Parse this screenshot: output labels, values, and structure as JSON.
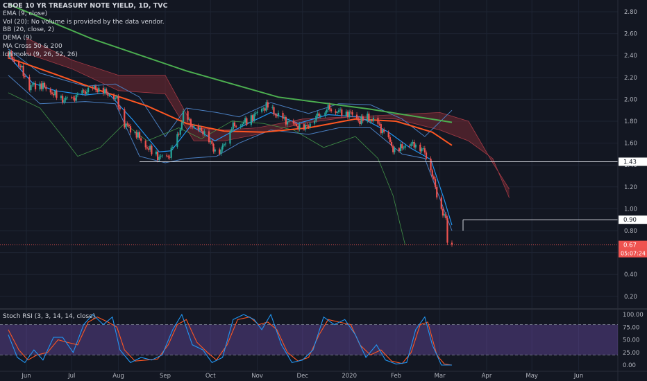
{
  "header": {
    "title": "CBOE 10 YR TREASURY NOTE YIELD, 1D, TVC",
    "indicators": [
      "EMA (9, close)",
      "Vol (20): No volume is provided by the data vendor.",
      "BB (20, close, 2)",
      "DEMA (9)",
      "MA Cross 50 & 200",
      "Ichimoku (9, 26, 52, 26)"
    ]
  },
  "rsi": {
    "label": "Stoch RSI (3, 3, 14, 14, close)"
  },
  "colors": {
    "background": "#131722",
    "up": "#26a69a",
    "down": "#ef5350",
    "ema": "#2196f3",
    "ma50": "#ff5722",
    "ma200": "#4caf50",
    "bb": "#4a7fc1",
    "cloud": "#8b2e38",
    "lagging": "#4caf50",
    "k": "#2196f3",
    "d": "#ff5722",
    "rsiBand": "#7e57c2"
  },
  "chart_data": [
    {
      "type": "candlestick",
      "y_axis": {
        "ticks": [
          "2.80",
          "2.60",
          "2.40",
          "2.20",
          "2.00",
          "1.80",
          "1.60",
          "1.40",
          "1.20",
          "1.00",
          "0.80",
          "0.60",
          "0.40",
          "0.20"
        ],
        "range": [
          0.12,
          2.88
        ]
      },
      "x_axis": {
        "ticks": [
          "Jun",
          "Jul",
          "Aug",
          "Sep",
          "Oct",
          "Nov",
          "Dec",
          "2020",
          "Feb",
          "Mar",
          "Apr",
          "May",
          "Jun"
        ]
      },
      "price_labels": [
        {
          "value": 1.43,
          "text": "1.43"
        },
        {
          "value": 0.9,
          "text": "0.90"
        },
        {
          "value": 0.67,
          "text": "0.67",
          "subtext": "05:07:24"
        }
      ],
      "anchors": [
        [
          "2019-05-20",
          2.42
        ],
        [
          "2019-05-28",
          2.3
        ],
        [
          "2019-06-03",
          2.12
        ],
        [
          "2019-06-10",
          2.14
        ],
        [
          "2019-06-18",
          2.06
        ],
        [
          "2019-06-24",
          2.0
        ],
        [
          "2019-07-01",
          2.0
        ],
        [
          "2019-07-08",
          2.06
        ],
        [
          "2019-07-16",
          2.1
        ],
        [
          "2019-07-24",
          2.06
        ],
        [
          "2019-07-31",
          2.0
        ],
        [
          "2019-08-05",
          1.78
        ],
        [
          "2019-08-12",
          1.7
        ],
        [
          "2019-08-20",
          1.56
        ],
        [
          "2019-08-28",
          1.47
        ],
        [
          "2019-09-03",
          1.47
        ],
        [
          "2019-09-10",
          1.68
        ],
        [
          "2019-09-13",
          1.86
        ],
        [
          "2019-09-20",
          1.74
        ],
        [
          "2019-09-27",
          1.7
        ],
        [
          "2019-10-03",
          1.55
        ],
        [
          "2019-10-08",
          1.53
        ],
        [
          "2019-10-15",
          1.75
        ],
        [
          "2019-10-25",
          1.8
        ],
        [
          "2019-11-07",
          1.94
        ],
        [
          "2019-11-15",
          1.84
        ],
        [
          "2019-11-26",
          1.76
        ],
        [
          "2019-12-03",
          1.74
        ],
        [
          "2019-12-10",
          1.84
        ],
        [
          "2019-12-18",
          1.92
        ],
        [
          "2019-12-27",
          1.88
        ],
        [
          "2020-01-02",
          1.87
        ],
        [
          "2020-01-08",
          1.8
        ],
        [
          "2020-01-13",
          1.83
        ],
        [
          "2020-01-20",
          1.77
        ],
        [
          "2020-01-27",
          1.63
        ],
        [
          "2020-01-31",
          1.52
        ],
        [
          "2020-02-07",
          1.58
        ],
        [
          "2020-02-14",
          1.59
        ],
        [
          "2020-02-20",
          1.52
        ],
        [
          "2020-02-24",
          1.37
        ],
        [
          "2020-02-28",
          1.13
        ],
        [
          "2020-03-02",
          1.0
        ],
        [
          "2020-03-05",
          0.9
        ],
        [
          "2020-03-06",
          0.7
        ],
        [
          "2020-03-09",
          0.67
        ]
      ],
      "ema9": [
        [
          "2019-05-20",
          2.4
        ],
        [
          "2019-06-05",
          2.15
        ],
        [
          "2019-06-20",
          2.08
        ],
        [
          "2019-07-10",
          2.04
        ],
        [
          "2019-07-25",
          2.06
        ],
        [
          "2019-08-10",
          1.82
        ],
        [
          "2019-08-28",
          1.52
        ],
        [
          "2019-09-05",
          1.53
        ],
        [
          "2019-09-18",
          1.76
        ],
        [
          "2019-10-04",
          1.62
        ],
        [
          "2019-10-20",
          1.74
        ],
        [
          "2019-11-10",
          1.88
        ],
        [
          "2019-11-28",
          1.78
        ],
        [
          "2019-12-18",
          1.86
        ],
        [
          "2020-01-08",
          1.84
        ],
        [
          "2020-01-27",
          1.7
        ],
        [
          "2020-02-10",
          1.56
        ],
        [
          "2020-02-24",
          1.45
        ],
        [
          "2020-03-04",
          1.08
        ],
        [
          "2020-03-09",
          0.85
        ]
      ],
      "ma50": [
        [
          "2019-05-20",
          2.38
        ],
        [
          "2019-06-20",
          2.23
        ],
        [
          "2019-07-20",
          2.08
        ],
        [
          "2019-08-20",
          1.94
        ],
        [
          "2019-09-15",
          1.78
        ],
        [
          "2019-10-10",
          1.71
        ],
        [
          "2019-11-05",
          1.7
        ],
        [
          "2019-12-05",
          1.74
        ],
        [
          "2020-01-05",
          1.82
        ],
        [
          "2020-02-01",
          1.8
        ],
        [
          "2020-02-25",
          1.7
        ],
        [
          "2020-03-09",
          1.58
        ]
      ],
      "ma200": [
        [
          "2019-05-20",
          2.87
        ],
        [
          "2019-07-15",
          2.55
        ],
        [
          "2019-09-15",
          2.26
        ],
        [
          "2019-11-15",
          2.02
        ],
        [
          "2020-01-15",
          1.91
        ],
        [
          "2020-02-20",
          1.83
        ],
        [
          "2020-03-09",
          1.79
        ]
      ],
      "bb_upper": [
        [
          "2019-05-20",
          2.46
        ],
        [
          "2019-06-10",
          2.24
        ],
        [
          "2019-07-10",
          2.12
        ],
        [
          "2019-07-30",
          2.14
        ],
        [
          "2019-08-15",
          2.02
        ],
        [
          "2019-09-01",
          1.66
        ],
        [
          "2019-09-15",
          1.92
        ],
        [
          "2019-10-05",
          1.88
        ],
        [
          "2019-10-20",
          1.84
        ],
        [
          "2019-11-10",
          1.97
        ],
        [
          "2019-12-05",
          1.87
        ],
        [
          "2019-12-25",
          1.96
        ],
        [
          "2020-01-15",
          1.95
        ],
        [
          "2020-02-05",
          1.82
        ],
        [
          "2020-02-20",
          1.66
        ],
        [
          "2020-03-09",
          1.9
        ]
      ],
      "bb_lower": [
        [
          "2019-05-20",
          2.22
        ],
        [
          "2019-06-10",
          1.96
        ],
        [
          "2019-07-10",
          1.98
        ],
        [
          "2019-07-30",
          1.96
        ],
        [
          "2019-08-15",
          1.48
        ],
        [
          "2019-09-01",
          1.42
        ],
        [
          "2019-09-15",
          1.46
        ],
        [
          "2019-10-05",
          1.48
        ],
        [
          "2019-10-20",
          1.6
        ],
        [
          "2019-11-10",
          1.72
        ],
        [
          "2019-12-05",
          1.68
        ],
        [
          "2019-12-25",
          1.74
        ],
        [
          "2020-01-15",
          1.74
        ],
        [
          "2020-02-05",
          1.5
        ],
        [
          "2020-02-20",
          1.46
        ],
        [
          "2020-03-09",
          0.8
        ]
      ],
      "cloud_a": [
        [
          "2019-06-01",
          2.42
        ],
        [
          "2019-07-01",
          2.28
        ],
        [
          "2019-08-01",
          2.08
        ],
        [
          "2019-09-01",
          2.05
        ],
        [
          "2019-09-20",
          1.62
        ],
        [
          "2019-10-10",
          1.62
        ],
        [
          "2019-11-01",
          1.68
        ],
        [
          "2019-12-01",
          1.78
        ],
        [
          "2020-01-01",
          1.84
        ],
        [
          "2020-02-01",
          1.82
        ],
        [
          "2020-03-01",
          1.72
        ],
        [
          "2020-03-20",
          1.62
        ],
        [
          "2020-04-05",
          1.46
        ],
        [
          "2020-04-16",
          1.1
        ]
      ],
      "cloud_b": [
        [
          "2019-06-01",
          2.56
        ],
        [
          "2019-07-01",
          2.36
        ],
        [
          "2019-08-01",
          2.22
        ],
        [
          "2019-09-01",
          2.22
        ],
        [
          "2019-09-20",
          1.74
        ],
        [
          "2019-10-10",
          1.72
        ],
        [
          "2019-11-01",
          1.74
        ],
        [
          "2019-12-01",
          1.82
        ],
        [
          "2020-01-01",
          1.84
        ],
        [
          "2020-02-01",
          1.86
        ],
        [
          "2020-03-01",
          1.88
        ],
        [
          "2020-03-20",
          1.8
        ],
        [
          "2020-04-05",
          1.42
        ],
        [
          "2020-04-16",
          1.18
        ]
      ],
      "lagging": [
        [
          "2019-05-20",
          2.06
        ],
        [
          "2019-06-10",
          1.92
        ],
        [
          "2019-06-25",
          1.66
        ],
        [
          "2019-07-05",
          1.48
        ],
        [
          "2019-07-20",
          1.56
        ],
        [
          "2019-08-05",
          1.78
        ],
        [
          "2019-08-20",
          1.62
        ],
        [
          "2019-09-10",
          1.74
        ],
        [
          "2019-09-25",
          1.64
        ],
        [
          "2019-10-15",
          1.8
        ],
        [
          "2019-11-05",
          1.78
        ],
        [
          "2019-11-25",
          1.72
        ],
        [
          "2019-12-15",
          1.56
        ],
        [
          "2020-01-05",
          1.66
        ],
        [
          "2020-01-20",
          1.46
        ],
        [
          "2020-01-30",
          1.12
        ],
        [
          "2020-02-07",
          0.67
        ]
      ]
    },
    {
      "type": "line",
      "name": "Stoch RSI (3, 3, 14, 14, close)",
      "y_axis": {
        "ticks": [
          "100.00",
          "75.00",
          "50.00",
          "25.00",
          "0.00"
        ],
        "range": [
          -5,
          105
        ]
      },
      "bands": [
        20,
        80
      ],
      "k": [
        [
          "2019-05-20",
          60
        ],
        [
          "2019-05-26",
          15
        ],
        [
          "2019-05-31",
          5
        ],
        [
          "2019-06-06",
          30
        ],
        [
          "2019-06-12",
          10
        ],
        [
          "2019-06-19",
          55
        ],
        [
          "2019-06-25",
          55
        ],
        [
          "2019-07-02",
          25
        ],
        [
          "2019-07-09",
          80
        ],
        [
          "2019-07-15",
          100
        ],
        [
          "2019-07-22",
          80
        ],
        [
          "2019-07-28",
          95
        ],
        [
          "2019-08-02",
          30
        ],
        [
          "2019-08-09",
          5
        ],
        [
          "2019-08-16",
          15
        ],
        [
          "2019-08-23",
          10
        ],
        [
          "2019-08-30",
          20
        ],
        [
          "2019-09-06",
          70
        ],
        [
          "2019-09-12",
          100
        ],
        [
          "2019-09-19",
          40
        ],
        [
          "2019-09-26",
          30
        ],
        [
          "2019-10-02",
          5
        ],
        [
          "2019-10-09",
          15
        ],
        [
          "2019-10-16",
          90
        ],
        [
          "2019-10-23",
          100
        ],
        [
          "2019-10-30",
          90
        ],
        [
          "2019-11-04",
          70
        ],
        [
          "2019-11-10",
          100
        ],
        [
          "2019-11-17",
          40
        ],
        [
          "2019-11-24",
          5
        ],
        [
          "2019-12-01",
          10
        ],
        [
          "2019-12-08",
          30
        ],
        [
          "2019-12-15",
          95
        ],
        [
          "2019-12-22",
          80
        ],
        [
          "2019-12-29",
          90
        ],
        [
          "2020-01-05",
          60
        ],
        [
          "2020-01-12",
          15
        ],
        [
          "2020-01-19",
          40
        ],
        [
          "2020-01-25",
          10
        ],
        [
          "2020-02-01",
          2
        ],
        [
          "2020-02-08",
          5
        ],
        [
          "2020-02-14",
          70
        ],
        [
          "2020-02-20",
          95
        ],
        [
          "2020-02-25",
          40
        ],
        [
          "2020-03-02",
          0
        ],
        [
          "2020-03-09",
          0
        ]
      ],
      "d": [
        [
          "2019-05-20",
          70
        ],
        [
          "2019-05-27",
          30
        ],
        [
          "2019-06-02",
          10
        ],
        [
          "2019-06-08",
          20
        ],
        [
          "2019-06-15",
          25
        ],
        [
          "2019-06-22",
          50
        ],
        [
          "2019-06-28",
          45
        ],
        [
          "2019-07-05",
          40
        ],
        [
          "2019-07-12",
          85
        ],
        [
          "2019-07-18",
          95
        ],
        [
          "2019-07-25",
          85
        ],
        [
          "2019-07-31",
          75
        ],
        [
          "2019-08-05",
          30
        ],
        [
          "2019-08-12",
          8
        ],
        [
          "2019-08-20",
          10
        ],
        [
          "2019-08-27",
          12
        ],
        [
          "2019-09-03",
          40
        ],
        [
          "2019-09-09",
          80
        ],
        [
          "2019-09-15",
          90
        ],
        [
          "2019-09-22",
          45
        ],
        [
          "2019-09-29",
          25
        ],
        [
          "2019-10-05",
          10
        ],
        [
          "2019-10-12",
          40
        ],
        [
          "2019-10-19",
          90
        ],
        [
          "2019-10-27",
          95
        ],
        [
          "2019-11-02",
          80
        ],
        [
          "2019-11-08",
          85
        ],
        [
          "2019-11-14",
          70
        ],
        [
          "2019-11-21",
          25
        ],
        [
          "2019-11-28",
          8
        ],
        [
          "2019-12-05",
          15
        ],
        [
          "2019-12-12",
          60
        ],
        [
          "2019-12-18",
          90
        ],
        [
          "2019-12-25",
          85
        ],
        [
          "2020-01-02",
          80
        ],
        [
          "2020-01-08",
          40
        ],
        [
          "2020-01-15",
          20
        ],
        [
          "2020-01-22",
          30
        ],
        [
          "2020-01-29",
          8
        ],
        [
          "2020-02-05",
          3
        ],
        [
          "2020-02-11",
          25
        ],
        [
          "2020-02-17",
          80
        ],
        [
          "2020-02-22",
          85
        ],
        [
          "2020-02-28",
          20
        ],
        [
          "2020-03-04",
          2
        ],
        [
          "2020-03-09",
          0
        ]
      ]
    }
  ]
}
